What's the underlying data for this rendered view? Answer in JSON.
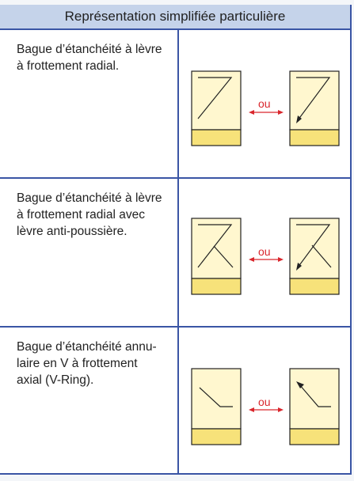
{
  "header": {
    "title": "Représentation simplifiée particulière"
  },
  "rows": [
    {
      "description": "Bague d’étanchéité à lèvre\nà frottement radial.",
      "separator": "ou"
    },
    {
      "description": "Bague d’étanchéité à lèvre\nà frottement radial avec\nlèvre anti-poussière.",
      "separator": "ou"
    },
    {
      "description": "Bague d’étanchéité annu-\nlaire en V à frottement\naxial (V-Ring).",
      "separator": "ou"
    }
  ],
  "colors": {
    "border_blue": "#3a55a5",
    "header_fill": "#c5d3ea",
    "symbol_fill": "#fff7cf",
    "band_fill": "#f7e27a",
    "arrow_red": "#d9262c"
  }
}
